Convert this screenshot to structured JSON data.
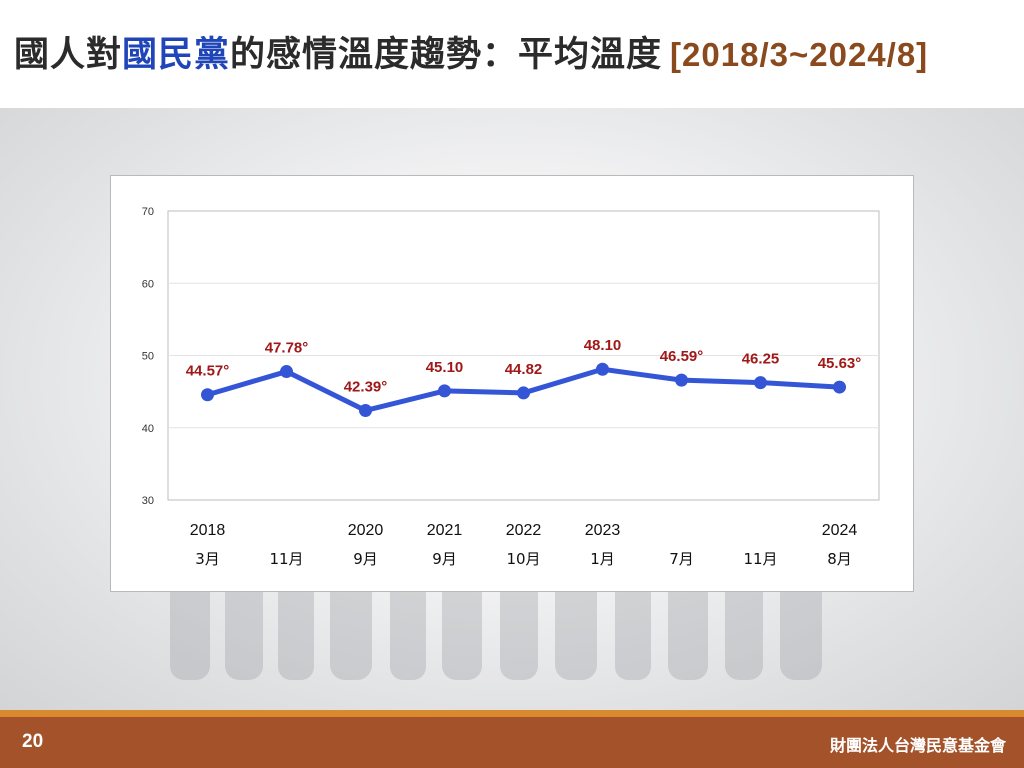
{
  "title": {
    "part1": "國人對",
    "highlight": "國民黨",
    "part2": "的感情溫度趨勢：平均溫度",
    "range": "[2018/3~2024/8]"
  },
  "footer": {
    "page_number": "20",
    "organization": "財團法人台灣民意基金會"
  },
  "colors": {
    "line": "#3355d6",
    "data_label": "#a01818",
    "title_highlight": "#1f45b8",
    "title_range": "#8a4a1e",
    "footer_bg": "#a3522a",
    "footer_stripe": "#d9892e"
  },
  "chart_data": {
    "type": "line",
    "title": "",
    "xlabel": "",
    "ylabel": "",
    "ylim": [
      30,
      70
    ],
    "yticks": [
      30,
      40,
      50,
      60,
      70
    ],
    "grid": true,
    "categories": [
      {
        "year": "2018",
        "month": "3月"
      },
      {
        "year": "",
        "month": "11月"
      },
      {
        "year": "2020",
        "month": "9月"
      },
      {
        "year": "2021",
        "month": "9月"
      },
      {
        "year": "2022",
        "month": "10月"
      },
      {
        "year": "2023",
        "month": "1月"
      },
      {
        "year": "",
        "month": "7月"
      },
      {
        "year": "",
        "month": "11月"
      },
      {
        "year": "2024",
        "month": "8月"
      }
    ],
    "values": [
      44.57,
      47.78,
      42.39,
      45.1,
      44.82,
      48.1,
      46.59,
      46.25,
      45.63
    ],
    "data_labels": [
      "44.57°",
      "47.78°",
      "42.39°",
      "45.10",
      "44.82",
      "48.10",
      "46.59°",
      "46.25",
      "45.63°"
    ]
  }
}
